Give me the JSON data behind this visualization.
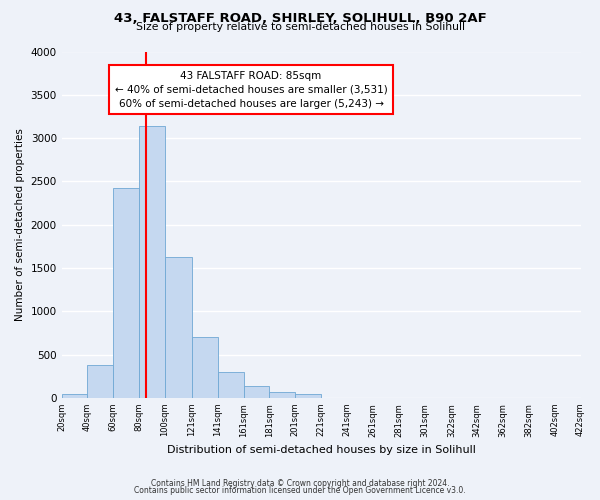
{
  "title": "43, FALSTAFF ROAD, SHIRLEY, SOLIHULL, B90 2AF",
  "subtitle": "Size of property relative to semi-detached houses in Solihull",
  "xlabel": "Distribution of semi-detached houses by size in Solihull",
  "ylabel": "Number of semi-detached properties",
  "bin_edges": [
    20,
    40,
    60,
    80,
    100,
    121,
    141,
    161,
    181,
    201,
    221,
    241,
    261,
    281,
    301,
    322,
    342,
    362,
    382,
    402,
    422
  ],
  "bar_heights": [
    50,
    380,
    2420,
    3140,
    1630,
    700,
    295,
    140,
    65,
    50,
    0,
    0,
    0,
    0,
    0,
    0,
    0,
    0,
    0,
    0
  ],
  "bar_color": "#c5d8f0",
  "bar_edge_color": "#6fa8d4",
  "property_size": 85,
  "vline_color": "red",
  "annotation_line1": "43 FALSTAFF ROAD: 85sqm",
  "annotation_line2": "← 40% of semi-detached houses are smaller (3,531)",
  "annotation_line3": "60% of semi-detached houses are larger (5,243) →",
  "annotation_box_color": "white",
  "annotation_box_edge_color": "red",
  "ylim": [
    0,
    4000
  ],
  "yticks": [
    0,
    500,
    1000,
    1500,
    2000,
    2500,
    3000,
    3500,
    4000
  ],
  "xtick_labels": [
    "20sqm",
    "40sqm",
    "60sqm",
    "80sqm",
    "100sqm",
    "121sqm",
    "141sqm",
    "161sqm",
    "181sqm",
    "201sqm",
    "221sqm",
    "241sqm",
    "261sqm",
    "281sqm",
    "301sqm",
    "322sqm",
    "342sqm",
    "362sqm",
    "382sqm",
    "402sqm",
    "422sqm"
  ],
  "footnote1": "Contains HM Land Registry data © Crown copyright and database right 2024.",
  "footnote2": "Contains public sector information licensed under the Open Government Licence v3.0.",
  "bg_color": "#eef2f9",
  "grid_color": "white"
}
